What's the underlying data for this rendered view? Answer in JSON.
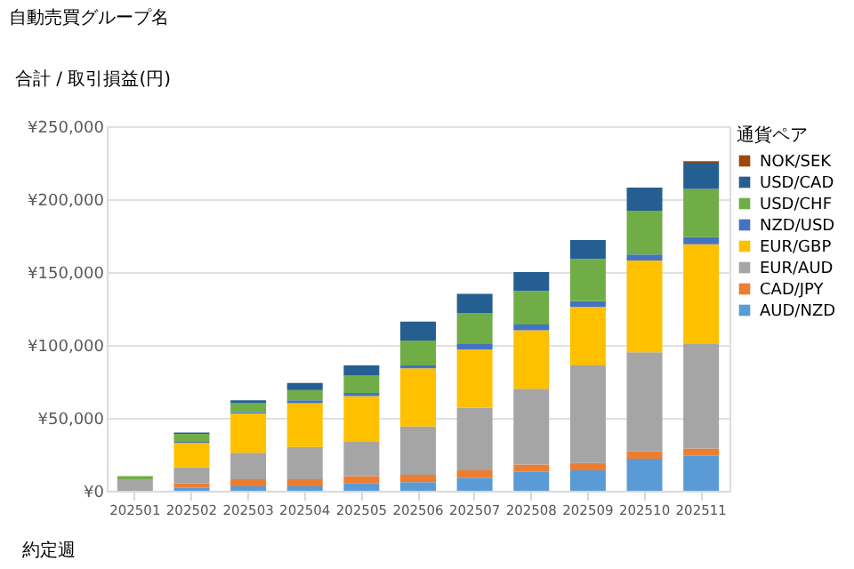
{
  "chart_data": {
    "type": "bar",
    "stacked": true,
    "title": "自動売買グループ名",
    "ylabel": "合計 / 取引損益(円)",
    "xlabel": "約定週",
    "legend_title": "通貨ペア",
    "legend": "right",
    "grid": "y",
    "categories": [
      "202501",
      "202502",
      "202503",
      "202504",
      "202505",
      "202506",
      "202507",
      "202508",
      "202509",
      "202510",
      "202511"
    ],
    "ylim": [
      0,
      250000
    ],
    "yticks": [
      {
        "value": 0,
        "label": "¥0"
      },
      {
        "value": 50000,
        "label": "¥50,000"
      },
      {
        "value": 100000,
        "label": "¥100,000"
      },
      {
        "value": 150000,
        "label": "¥150,000"
      },
      {
        "value": 200000,
        "label": "¥200,000"
      },
      {
        "value": 250000,
        "label": "¥250,000"
      }
    ],
    "series": [
      {
        "name": "AUD/NZD",
        "color": "#5b9bd5",
        "values": [
          null,
          2000,
          3000,
          3000,
          5000,
          6000,
          9000,
          13000,
          14000,
          22000,
          24000
        ]
      },
      {
        "name": "CAD/JPY",
        "color": "#ed7d31",
        "values": [
          null,
          3000,
          5000,
          5000,
          5000,
          5000,
          5000,
          5000,
          5000,
          5000,
          5000
        ]
      },
      {
        "name": "EUR/AUD",
        "color": "#a5a5a5",
        "values": [
          8000,
          11000,
          18000,
          22000,
          24000,
          33000,
          43000,
          52000,
          67000,
          68000,
          72000
        ]
      },
      {
        "name": "EUR/GBP",
        "color": "#ffc000",
        "values": [
          null,
          17000,
          27000,
          30000,
          31000,
          40000,
          40000,
          40000,
          40000,
          63000,
          68000
        ]
      },
      {
        "name": "NZD/USD",
        "color": "#4472c4",
        "values": [
          null,
          1000,
          1000,
          2000,
          2000,
          2000,
          4000,
          4000,
          4000,
          4000,
          5000
        ]
      },
      {
        "name": "USD/CHF",
        "color": "#70ad47",
        "values": [
          2000,
          5000,
          6000,
          7000,
          12000,
          17000,
          21000,
          23000,
          29000,
          30000,
          33000
        ]
      },
      {
        "name": "USD/CAD",
        "color": "#255e91",
        "values": [
          null,
          1000,
          2000,
          5000,
          7000,
          13000,
          13000,
          13000,
          13000,
          16000,
          18000
        ]
      },
      {
        "name": "NOK/SEK",
        "color": "#9e480e",
        "values": [
          null,
          null,
          null,
          null,
          null,
          null,
          null,
          null,
          null,
          null,
          1000
        ]
      }
    ]
  }
}
